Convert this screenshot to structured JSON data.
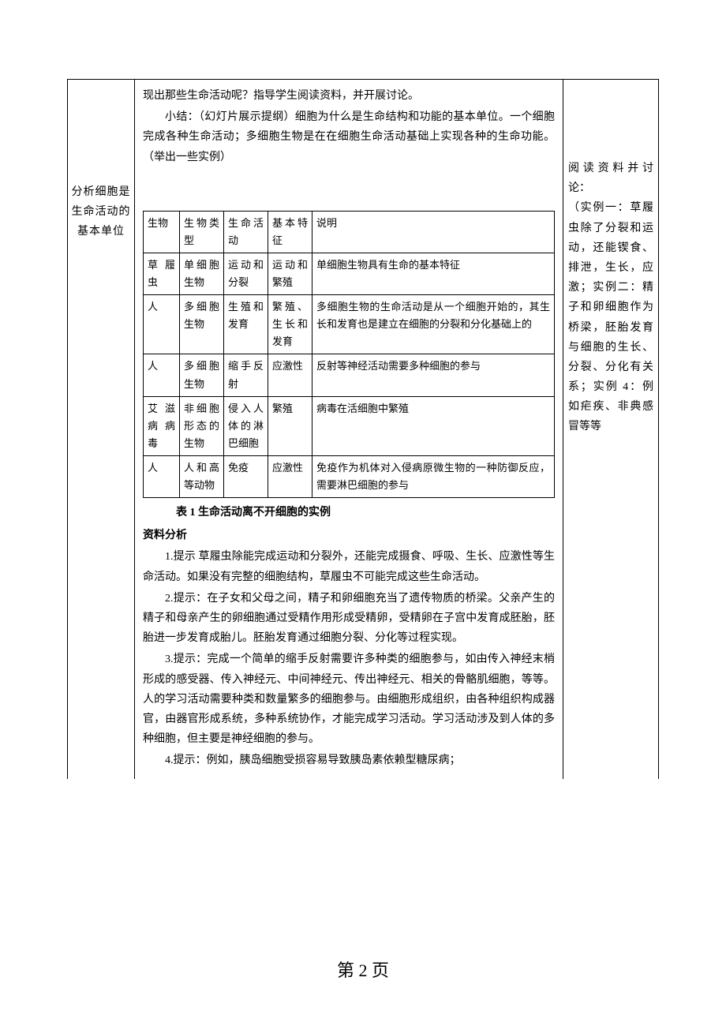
{
  "left_column": {
    "title": "分析细胞是生命活动的基本单位"
  },
  "center_column": {
    "intro_p1": "现出那些生命活动呢？指导学生阅读资料，并开展讨论。",
    "intro_p2": "小结：（幻灯片展示提纲）细胞为什么是生命结构和功能的基本单位。一个细胞完成各种生命活动；多细胞生物是在在细胞生命活动基础上实现各种的生命功能。（举出一些实例）",
    "table_caption": "表 1 生命活动离不开细胞的实例",
    "section_heading": "资料分析",
    "analysis_p1": "1.提示 草履虫除能完成运动和分裂外，还能完成摄食、呼吸、生长、应激性等生命活动。如果没有完整的细胞结构，草履虫不可能完成这些生命活动。",
    "analysis_p2": "2.提示：在子女和父母之间，精子和卵细胞充当了遗传物质的桥梁。父亲产生的精子和母亲产生的卵细胞通过受精作用形成受精卵，受精卵在子宫中发育成胚胎，胚胎进一步发育成胎儿。胚胎发育通过细胞分裂、分化等过程实现。",
    "analysis_p3": "3.提示：完成一个简单的缩手反射需要许多种类的细胞参与，如由传入神经末梢形成的感受器、传入神经元、中间神经元、传出神经元、相关的骨骼肌细胞，等等。人的学习活动需要种类和数量繁多的细胞参与。由细胞形成组织，由各种组织构成器官，由器官形成系统，多种系统协作，才能完成学习活动。学习活动涉及到人体的多种细胞，但主要是神经细胞的参与。",
    "analysis_p4": "4.提示：例如，胰岛细胞受损容易导致胰岛素依赖型糖尿病；",
    "table": {
      "header": {
        "c1": "生物",
        "c2": "生物类型",
        "c3": "生命活动",
        "c4": "基本特征",
        "c5": "说明"
      },
      "rows": [
        {
          "c1": "草履虫",
          "c2": "单细胞生物",
          "c3": "运动和分裂",
          "c4": "运动和繁殖",
          "c5": "单细胞生物具有生命的基本特征"
        },
        {
          "c1": "人",
          "c2": "多细胞生物",
          "c3": "生殖和发育",
          "c4": "繁殖、生长和发育",
          "c5": "多细胞生物的生命活动是从一个细胞开始的，其生长和发育也是建立在细胞的分裂和分化基础上的"
        },
        {
          "c1": "人",
          "c2": "多细胞生物",
          "c3": "缩手反射",
          "c4": "应激性",
          "c5": "反射等神经活动需要多种细胞的参与"
        },
        {
          "c1": "艾滋病病毒",
          "c2": "非细胞形态的生物",
          "c3": "侵入人体的淋巴细胞",
          "c4": "繁殖",
          "c5": "病毒在活细胞中繁殖"
        },
        {
          "c1": "人",
          "c2": "人和高等动物",
          "c3": "免疫",
          "c4": "应激性",
          "c5": "免疫作为机体对入侵病原微生物的一种防御反应，需要淋巴细胞的参与"
        }
      ]
    }
  },
  "right_column": {
    "text": "阅读资料并讨论：\n（实例一：草履虫除了分裂和运动，还能锲食、排泄，生长，应激；实例二：精子和卵细胞作为桥梁，胚胎发育与细胞的生长、分裂、分化有关系；实例 4：例如疟疾、非典感冒等等"
  },
  "page_number": "第 2 页"
}
